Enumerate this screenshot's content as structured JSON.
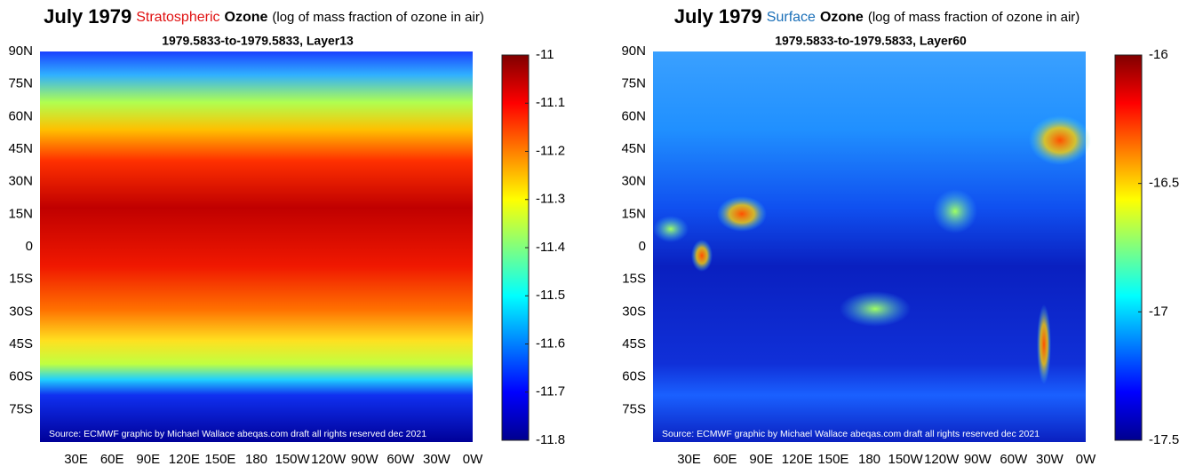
{
  "chart_data": [
    {
      "type": "heatmap",
      "title_parts": [
        "July 1979",
        "Stratospheric",
        "Ozone",
        "(log of mass fraction of ozone in air)"
      ],
      "highlight_color": "#e01010",
      "subtitle": "1979.5833-to-1979.5833,  Layer13",
      "note": "Source: ECMWF  graphic by Michael Wallace abeqas.com draft all rights reserved dec 2021",
      "xlim": [
        0,
        360
      ],
      "xticks": [
        {
          "value": 30,
          "label": "30E"
        },
        {
          "value": 60,
          "label": "60E"
        },
        {
          "value": 90,
          "label": "90E"
        },
        {
          "value": 120,
          "label": "120E"
        },
        {
          "value": 150,
          "label": "150E"
        },
        180,
        {
          "value": 210,
          "label": "150W"
        },
        {
          "value": 240,
          "label": "120W"
        },
        {
          "value": 270,
          "label": "90W"
        },
        {
          "value": 300,
          "label": "60W"
        },
        {
          "value": 330,
          "label": "30W"
        },
        {
          "value": 360,
          "label": "0W"
        }
      ],
      "ylim": [
        -90,
        90
      ],
      "yticks": [
        {
          "value": 90,
          "label": "90N"
        },
        {
          "value": 75,
          "label": "75N"
        },
        {
          "value": 60,
          "label": "60N"
        },
        {
          "value": 45,
          "label": "45N"
        },
        {
          "value": 30,
          "label": "30N"
        },
        {
          "value": 15,
          "label": "15N"
        },
        0,
        {
          "value": -15,
          "label": "15S"
        },
        {
          "value": -30,
          "label": "30S"
        },
        {
          "value": -45,
          "label": "45S"
        },
        {
          "value": -60,
          "label": "60S"
        },
        {
          "value": -75,
          "label": "75S"
        }
      ],
      "clim": [
        -11.8,
        -11
      ],
      "cticks": [
        -11,
        -11.1,
        -11.2,
        -11.3,
        -11.4,
        -11.5,
        -11.6,
        -11.7,
        -11.8
      ]
    },
    {
      "type": "heatmap",
      "title_parts": [
        "July 1979",
        "Surface",
        "Ozone",
        "(log of mass fraction of ozone in air)"
      ],
      "highlight_color": "#1a6fb8",
      "subtitle": "1979.5833-to-1979.5833,  Layer60",
      "note": "Source: ECMWF  graphic by Michael Wallace abeqas.com draft all rights reserved dec 2021",
      "xlim": [
        0,
        360
      ],
      "xticks": [
        {
          "value": 30,
          "label": "30E"
        },
        {
          "value": 60,
          "label": "60E"
        },
        {
          "value": 90,
          "label": "90E"
        },
        {
          "value": 120,
          "label": "120E"
        },
        {
          "value": 150,
          "label": "150E"
        },
        180,
        {
          "value": 210,
          "label": "150W"
        },
        {
          "value": 240,
          "label": "120W"
        },
        {
          "value": 270,
          "label": "90W"
        },
        {
          "value": 300,
          "label": "60W"
        },
        {
          "value": 330,
          "label": "30W"
        },
        {
          "value": 360,
          "label": "0W"
        }
      ],
      "ylim": [
        -90,
        90
      ],
      "yticks": [
        {
          "value": 90,
          "label": "90N"
        },
        {
          "value": 75,
          "label": "75N"
        },
        {
          "value": 60,
          "label": "60N"
        },
        {
          "value": 45,
          "label": "45N"
        },
        {
          "value": 30,
          "label": "30N"
        },
        {
          "value": 15,
          "label": "15N"
        },
        0,
        {
          "value": -15,
          "label": "15S"
        },
        {
          "value": -30,
          "label": "30S"
        },
        {
          "value": -45,
          "label": "45S"
        },
        {
          "value": -60,
          "label": "60S"
        },
        {
          "value": -75,
          "label": "75S"
        }
      ],
      "clim": [
        -17.5,
        -16
      ],
      "cticks": [
        -16,
        -16.5,
        -17,
        -17.5
      ]
    }
  ]
}
